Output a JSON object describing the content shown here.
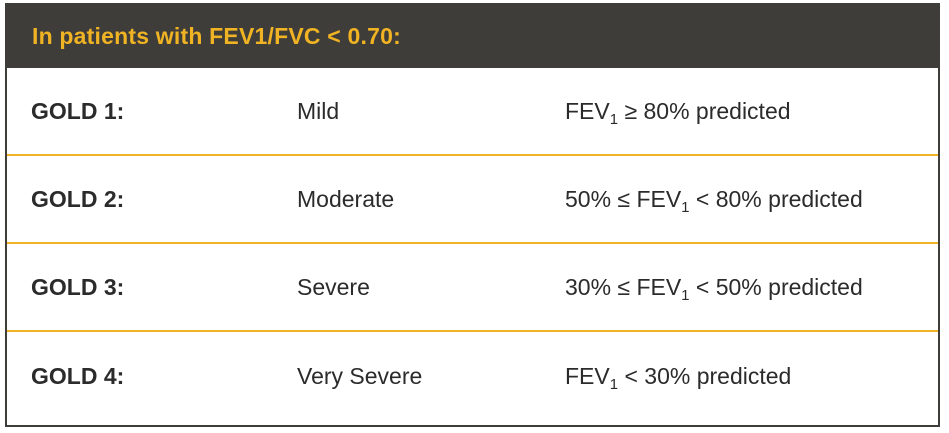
{
  "header": {
    "title": "In patients with FEV1/FVC < 0.70:"
  },
  "rows": [
    {
      "stage": "GOLD 1:",
      "severity": "Mild",
      "criteria_pre": "",
      "criteria_fev": "FEV",
      "criteria_sub": "1",
      "criteria_post": " ≥ 80% predicted"
    },
    {
      "stage": "GOLD 2:",
      "severity": "Moderate",
      "criteria_pre": "50% ≤ ",
      "criteria_fev": "FEV",
      "criteria_sub": "1",
      "criteria_post": " < 80% predicted"
    },
    {
      "stage": "GOLD 3:",
      "severity": "Severe",
      "criteria_pre": "30% ≤ ",
      "criteria_fev": "FEV",
      "criteria_sub": "1",
      "criteria_post": " < 50% predicted"
    },
    {
      "stage": "GOLD 4:",
      "severity": "Very Severe",
      "criteria_pre": "",
      "criteria_fev": "FEV",
      "criteria_sub": "1",
      "criteria_post": " < 30% predicted"
    }
  ],
  "colors": {
    "header_bg": "#3f3d3a",
    "accent": "#f0b323",
    "text": "#2b2b2b"
  }
}
